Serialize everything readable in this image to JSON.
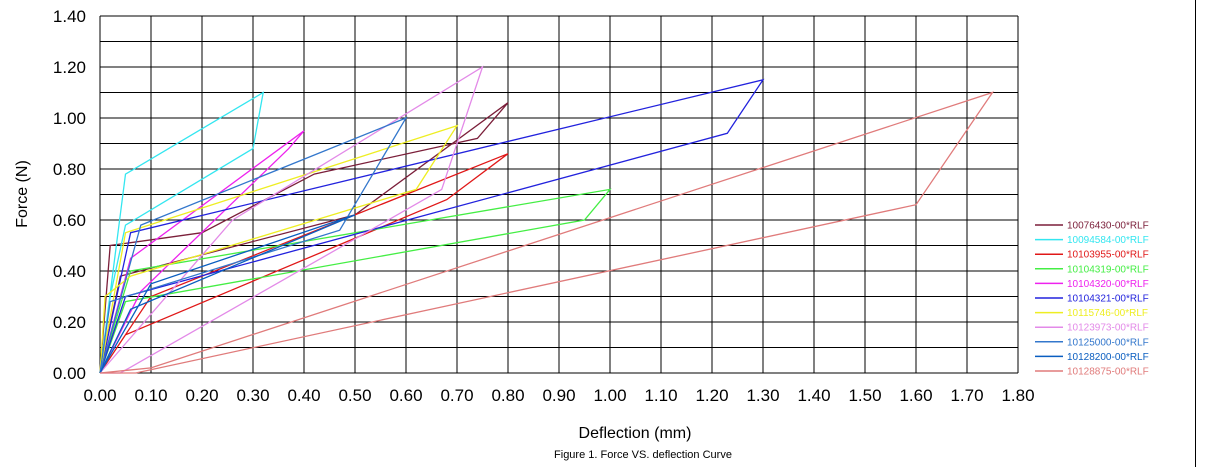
{
  "chart_data": {
    "type": "line",
    "title": "",
    "caption": "Figure 1. Force VS. deflection Curve",
    "xlabel": "Deflection (mm)",
    "ylabel": "Force (N)",
    "xlim": [
      0,
      1.8
    ],
    "ylim": [
      0,
      1.4
    ],
    "x_ticks": [
      "0.00",
      "0.10",
      "0.20",
      "0.30",
      "0.40",
      "0.50",
      "0.60",
      "0.70",
      "0.80",
      "0.90",
      "1.00",
      "1.10",
      "1.20",
      "1.30",
      "1.40",
      "1.50",
      "1.60",
      "1.70",
      "1.80"
    ],
    "y_ticks": [
      "0.00",
      "0.20",
      "0.40",
      "0.60",
      "0.80",
      "1.00",
      "1.20",
      "1.40"
    ],
    "grid": true,
    "legend_position": "right",
    "series": [
      {
        "name": "10076430-00*RLF",
        "color": "#7b1f3a",
        "points": [
          [
            0,
            0
          ],
          [
            0.04,
            0.38
          ],
          [
            0.5,
            0.62
          ],
          [
            0.8,
            1.06
          ],
          [
            0.74,
            0.92
          ],
          [
            0.42,
            0.78
          ],
          [
            0.2,
            0.55
          ],
          [
            0.02,
            0.5
          ],
          [
            0,
            0
          ]
        ]
      },
      {
        "name": "10094584-00*RLF",
        "color": "#33e6f0",
        "points": [
          [
            0,
            0
          ],
          [
            0.05,
            0.78
          ],
          [
            0.32,
            1.1
          ],
          [
            0.3,
            0.88
          ],
          [
            0.05,
            0.58
          ],
          [
            0.02,
            0.3
          ],
          [
            0,
            0
          ]
        ]
      },
      {
        "name": "10103955-00*RLF",
        "color": "#e01818",
        "points": [
          [
            0,
            0
          ],
          [
            0.1,
            0.3
          ],
          [
            0.8,
            0.86
          ],
          [
            0.68,
            0.68
          ],
          [
            0.05,
            0.15
          ],
          [
            0,
            0
          ]
        ]
      },
      {
        "name": "10104319-00*RLF",
        "color": "#44ee44",
        "points": [
          [
            0,
            0
          ],
          [
            0.06,
            0.4
          ],
          [
            1.0,
            0.72
          ],
          [
            0.95,
            0.6
          ],
          [
            0.05,
            0.28
          ],
          [
            0,
            0
          ]
        ]
      },
      {
        "name": "10104320-00*RLF",
        "color": "#ee22ee",
        "points": [
          [
            0,
            0
          ],
          [
            0.06,
            0.45
          ],
          [
            0.4,
            0.95
          ],
          [
            0.37,
            0.88
          ],
          [
            0.08,
            0.32
          ],
          [
            0,
            0
          ]
        ]
      },
      {
        "name": "10104321-00*RLF",
        "color": "#2222dd",
        "points": [
          [
            0,
            0
          ],
          [
            0.06,
            0.55
          ],
          [
            1.3,
            1.15
          ],
          [
            1.23,
            0.94
          ],
          [
            0.05,
            0.3
          ],
          [
            0,
            0
          ]
        ]
      },
      {
        "name": "10115746-00*RLF",
        "color": "#eeee22",
        "points": [
          [
            0,
            0
          ],
          [
            0.05,
            0.55
          ],
          [
            0.7,
            0.97
          ],
          [
            0.62,
            0.72
          ],
          [
            0.06,
            0.38
          ],
          [
            0.01,
            0.3
          ],
          [
            0,
            0
          ]
        ]
      },
      {
        "name": "10123973-00*RLF",
        "color": "#e38ae8",
        "points": [
          [
            0,
            0
          ],
          [
            0.26,
            0.6
          ],
          [
            0.75,
            1.2
          ],
          [
            0.67,
            0.72
          ],
          [
            0.04,
            0
          ],
          [
            0,
            0
          ]
        ]
      },
      {
        "name": "10125000-00*RLF",
        "color": "#3377cc",
        "points": [
          [
            0,
            0
          ],
          [
            0.08,
            0.58
          ],
          [
            0.6,
            1.0
          ],
          [
            0.47,
            0.56
          ],
          [
            0.02,
            0.28
          ],
          [
            0,
            0
          ]
        ]
      },
      {
        "name": "10128200-00*RLF",
        "color": "#0a5ec0",
        "points": [
          [
            0,
            0
          ],
          [
            0.1,
            0.35
          ],
          [
            0.5,
            0.62
          ],
          [
            0.06,
            0.25
          ],
          [
            0,
            0
          ]
        ]
      },
      {
        "name": "10128875-00*RLF",
        "color": "#e07b7b",
        "points": [
          [
            0,
            0
          ],
          [
            0.1,
            0.02
          ],
          [
            1.75,
            1.1
          ],
          [
            1.6,
            0.66
          ],
          [
            0.07,
            0
          ],
          [
            0,
            0
          ]
        ]
      }
    ]
  }
}
